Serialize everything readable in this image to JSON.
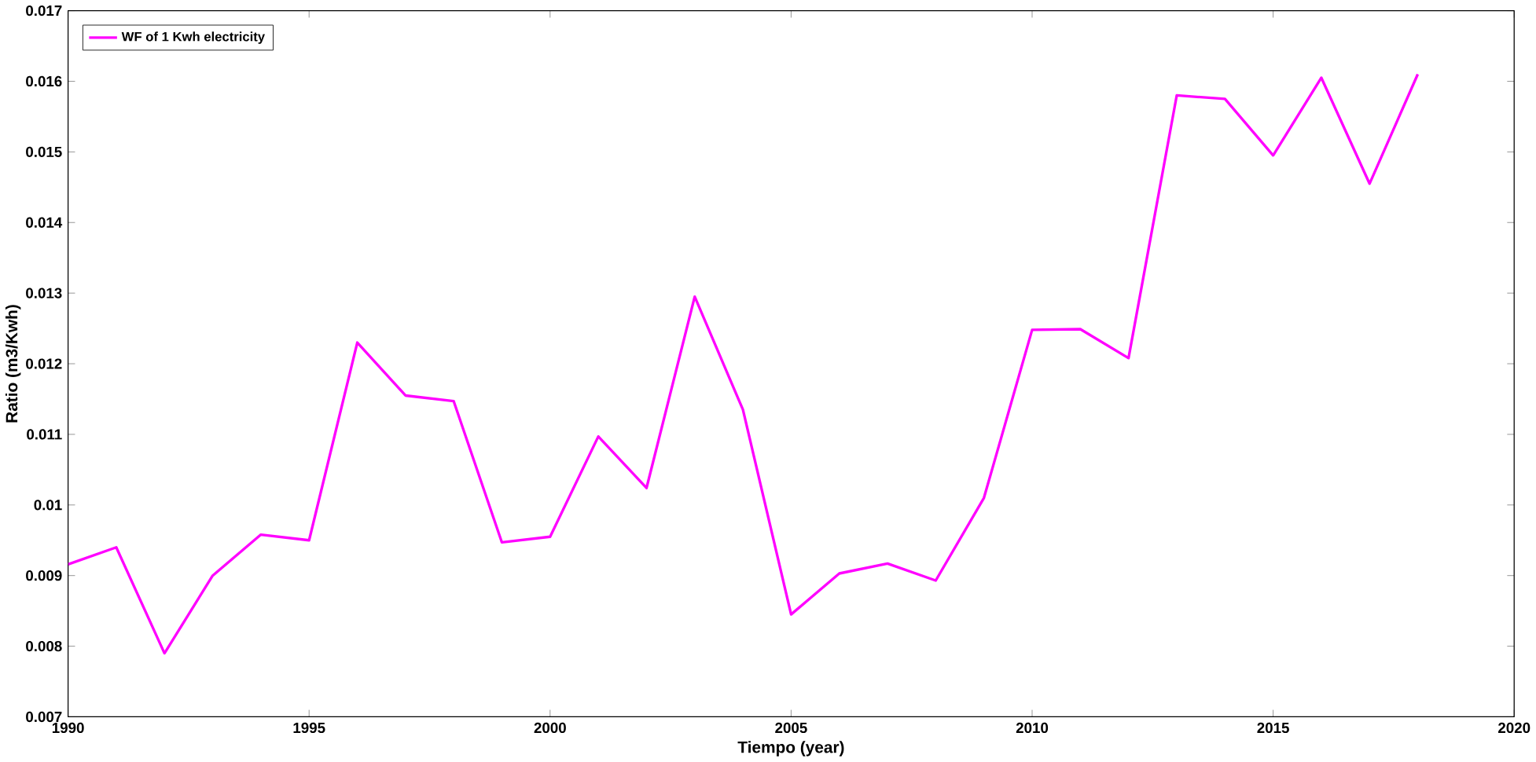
{
  "chart_data": {
    "type": "line",
    "xlabel": "Tiempo (year)",
    "ylabel": "Ratio (m3/Kwh)",
    "x": [
      1990,
      1991,
      1992,
      1993,
      1994,
      1995,
      1996,
      1997,
      1998,
      1999,
      2000,
      2001,
      2002,
      2003,
      2004,
      2005,
      2006,
      2007,
      2008,
      2009,
      2010,
      2011,
      2012,
      2013,
      2014,
      2015,
      2016,
      2017,
      2018
    ],
    "series": [
      {
        "name": "WF of 1 Kwh electricity",
        "color": "#ff00ff",
        "values": [
          0.00916,
          0.0094,
          0.0079,
          0.009,
          0.00958,
          0.0095,
          0.0123,
          0.01155,
          0.01147,
          0.00947,
          0.00955,
          0.01097,
          0.01024,
          0.01295,
          0.01135,
          0.00845,
          0.00903,
          0.00917,
          0.00893,
          0.0101,
          0.01248,
          0.01249,
          0.01208,
          0.0158,
          0.01575,
          0.01495,
          0.01605,
          0.01455,
          0.0161
        ]
      }
    ],
    "xlim": [
      1990,
      2020
    ],
    "ylim": [
      0.007,
      0.017
    ],
    "xticks": [
      1990,
      1995,
      2000,
      2005,
      2010,
      2015,
      2020
    ],
    "yticks": [
      0.007,
      0.008,
      0.009,
      0.01,
      0.011,
      0.012,
      0.013,
      0.014,
      0.015,
      0.016,
      0.017
    ],
    "legend": "top left",
    "grid": false,
    "marker": "none",
    "line_style": "solid"
  }
}
